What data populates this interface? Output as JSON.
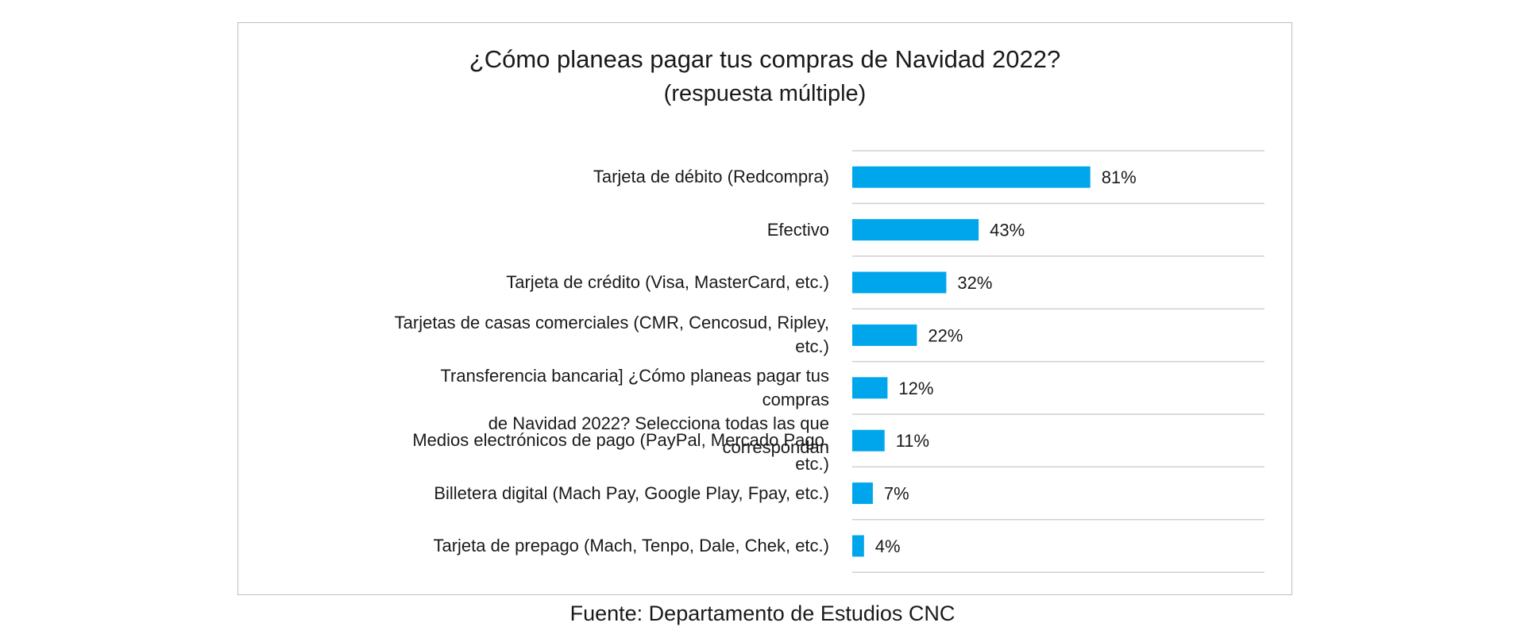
{
  "chart_data": {
    "type": "bar",
    "orientation": "horizontal",
    "title": "¿Cómo planeas pagar tus compras de Navidad 2022?",
    "subtitle": "(respuesta múltiple)",
    "categories": [
      [
        "Tarjeta de débito (Redcompra)"
      ],
      [
        "Efectivo"
      ],
      [
        "Tarjeta de crédito (Visa, MasterCard, etc.)"
      ],
      [
        "Tarjetas de casas comerciales (CMR, Cencosud, Ripley,",
        "etc.)"
      ],
      [
        "Transferencia bancaria] ¿Cómo planeas pagar tus compras",
        "de Navidad 2022? Selecciona todas las que correspondan"
      ],
      [
        "Medios electrónicos de pago (PayPal, Mercado Pago, etc.)"
      ],
      [
        "Billetera digital (Mach Pay, Google Play, Fpay, etc.)"
      ],
      [
        "Tarjeta de prepago (Mach, Tenpo, Dale, Chek, etc.)"
      ]
    ],
    "values": [
      81,
      43,
      32,
      22,
      12,
      11,
      7,
      4
    ],
    "data_labels": [
      "81%",
      "43%",
      "32%",
      "22%",
      "12%",
      "11%",
      "7%",
      "4%"
    ],
    "xlim": [
      0,
      100
    ],
    "grid": true,
    "legend": "none",
    "bar_color": "#00A6EB"
  },
  "source": "Fuente: Departamento de Estudios CNC"
}
